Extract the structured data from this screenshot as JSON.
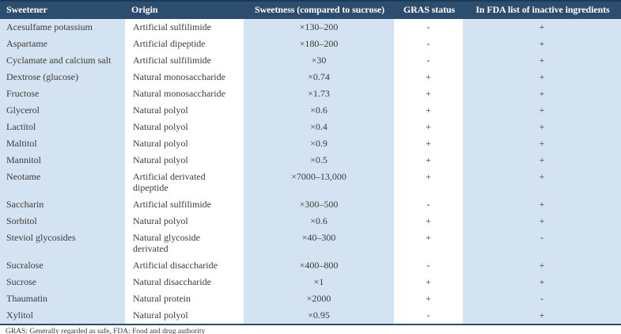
{
  "colors": {
    "header_bg": "#2d4d6e",
    "header_top": "#1c3a55",
    "band_light": "#d3e3f1",
    "band_white": "#ffffff",
    "body_text": "#3c3c3c",
    "header_text": "#ffffff",
    "bottom_border": "#2d4d6e"
  },
  "table": {
    "headers": [
      "Sweetener",
      "Origin",
      "Sweetness (compared to sucrose)",
      "GRAS status",
      "In FDA list of inactive ingredients"
    ],
    "rows": [
      [
        "Acesulfame potassium",
        "Artificial sulfilimide",
        "×130–200",
        "-",
        "+"
      ],
      [
        "Aspartame",
        "Artificial dipeptide",
        "×180–200",
        "-",
        "+"
      ],
      [
        "Cyclamate and calcium salt",
        "Artificial sulfilimide",
        "×30",
        "-",
        "+"
      ],
      [
        "Dextrose (glucose)",
        "Natural monosaccharide",
        "×0.74",
        "+",
        "+"
      ],
      [
        "Fructose",
        "Natural monosaccharide",
        "×1.73",
        "+",
        "+"
      ],
      [
        "Glycerol",
        "Natural polyol",
        "×0.6",
        "+",
        "+"
      ],
      [
        "Lactitol",
        "Natural polyol",
        "×0.4",
        "+",
        "+"
      ],
      [
        "Maltitol",
        "Natural polyol",
        "×0.9",
        "+",
        "+"
      ],
      [
        "Mannitol",
        "Natural polyol",
        "×0.5",
        "+",
        "+"
      ],
      [
        "Neotame",
        "Artificial derivated dipeptide",
        "×7000–13,000",
        "+",
        "+"
      ],
      [
        "Saccharin",
        "Artificial sulfilimide",
        "×300–500",
        "-",
        "+"
      ],
      [
        "Sorbitol",
        "Natural polyol",
        "×0.6",
        "+",
        "+"
      ],
      [
        "Steviol glycosides",
        "Natural glycoside derivated",
        "×40–300",
        "+",
        "-"
      ],
      [
        "Sucralose",
        "Artificial disaccharide",
        "×400–800",
        "-",
        "+"
      ],
      [
        "Sucrose",
        "Natural disaccharide",
        "×1",
        "+",
        "+"
      ],
      [
        "Thaumatin",
        "Natural protein",
        "×2000",
        "+",
        "-"
      ],
      [
        "Xylitol",
        "Natural polyol",
        "×0.95",
        "-",
        "+"
      ]
    ],
    "footnote": "GRAS: Generally regarded as safe, FDA: Food and drug authority"
  }
}
